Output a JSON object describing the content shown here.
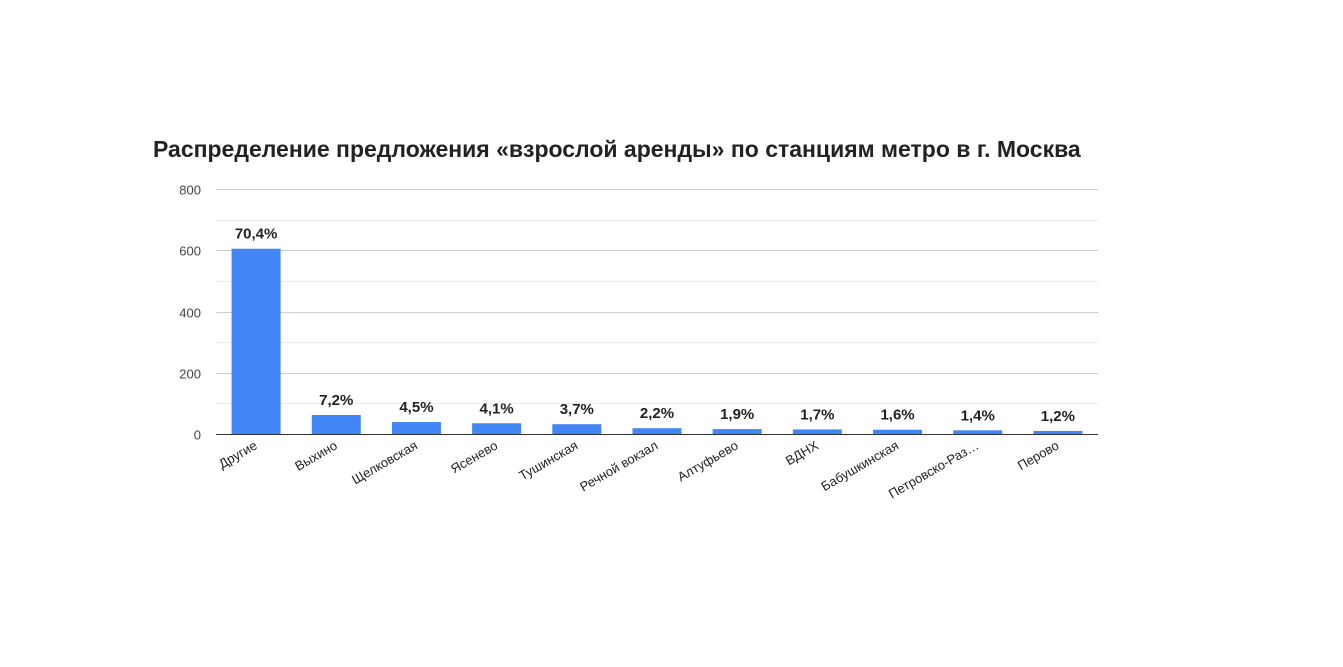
{
  "chart_data": {
    "type": "bar",
    "title": "Распределение предложения «взрослой аренды» по станциям метро в г. Москва",
    "xlabel": "",
    "ylabel": "",
    "ylim": [
      0,
      800
    ],
    "yticks": [
      "0",
      "200",
      "400",
      "600",
      "800"
    ],
    "grid": true,
    "legend": "none",
    "bar_color": "#4285f4",
    "categories": [
      "Другие",
      "Выхино",
      "Щелковская",
      "Ясенево",
      "Тушинская",
      "Речной вокзал",
      "Алтуфьево",
      "ВДНХ",
      "Бабушкинская",
      "Петровско-Раз…",
      "Перово"
    ],
    "values": [
      605,
      62,
      39,
      35,
      32,
      19,
      16,
      15,
      14,
      12,
      10
    ],
    "labels": [
      "70,4%",
      "7,2%",
      "4,5%",
      "4,1%",
      "3,7%",
      "2,2%",
      "1,9%",
      "1,7%",
      "1,6%",
      "1,4%",
      "1,2%"
    ]
  }
}
